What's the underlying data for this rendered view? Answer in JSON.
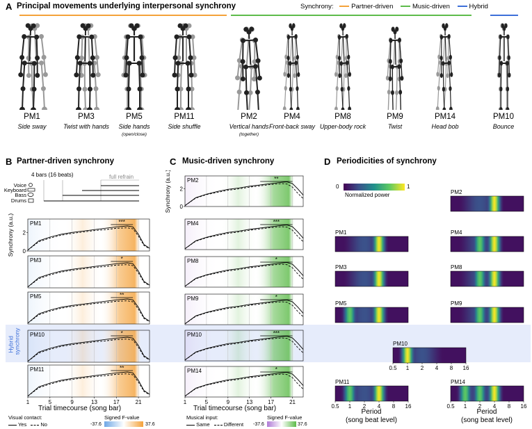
{
  "colors": {
    "partner": "#f4a23a",
    "music": "#5dbb4a",
    "hybrid": "#3d6fd9",
    "negative": "#6ea7e6",
    "musicneg": "#b07ad6",
    "hybridband": "#e6ecfb"
  },
  "panelA": {
    "letter": "A",
    "title": "Principal movements underlying interpersonal synchrony",
    "legend": {
      "label": "Synchrony:",
      "partner": "Partner-driven",
      "music": "Music-driven",
      "hybrid": "Hybrid"
    },
    "movements": [
      {
        "pm": "PM1",
        "desc": "Side sway",
        "sub": ""
      },
      {
        "pm": "PM3",
        "desc": "Twist with hands",
        "sub": ""
      },
      {
        "pm": "PM5",
        "desc": "Side hands",
        "sub": "(open/close)"
      },
      {
        "pm": "PM11",
        "desc": "Side shuffle",
        "sub": ""
      },
      {
        "pm": "PM2",
        "desc": "Vertical hands",
        "sub": "(together)"
      },
      {
        "pm": "PM4",
        "desc": "Front-back sway",
        "sub": ""
      },
      {
        "pm": "PM8",
        "desc": "Upper-body rock",
        "sub": ""
      },
      {
        "pm": "PM9",
        "desc": "Twist",
        "sub": ""
      },
      {
        "pm": "PM14",
        "desc": "Head bob",
        "sub": ""
      },
      {
        "pm": "PM10",
        "desc": "Bounce",
        "sub": ""
      }
    ]
  },
  "panelB": {
    "letter": "B",
    "title": "Partner-driven synchrony",
    "bars_label": "4 bars (16 beats)",
    "refrain_label": "full refrain",
    "instruments": [
      "Voice",
      "Keyboard",
      "Bass",
      "Drums"
    ],
    "ylabel": "Synchrony\n(a.u.)",
    "yticks": [
      "0",
      "2"
    ],
    "hybrid_label": "Hybrid\nsynchrony",
    "xlabel": "Trial timecourse (song bar)",
    "xticks": [
      "1",
      "5",
      "9",
      "13",
      "17",
      "21"
    ],
    "legend_title": "Visual contact:",
    "legend_solid": "Yes",
    "legend_dashed": "No",
    "cbar_title": "Signed F-value",
    "cbar_min": "-37.6",
    "cbar_max": "37.6",
    "rows": [
      {
        "pm": "PM1",
        "sig": "***"
      },
      {
        "pm": "PM3",
        "sig": "*"
      },
      {
        "pm": "PM5",
        "sig": "**"
      },
      {
        "pm": "PM10",
        "sig": "*"
      },
      {
        "pm": "PM11",
        "sig": "**"
      }
    ]
  },
  "panelC": {
    "letter": "C",
    "title": "Music-driven synchrony",
    "ylabel": "Synchrony\n(a.u.)",
    "yticks": [
      "0",
      "2"
    ],
    "xlabel": "Trial timecourse (song bar)",
    "xticks": [
      "1",
      "5",
      "9",
      "13",
      "17",
      "21"
    ],
    "legend_title": "Musical input:",
    "legend_solid": "Same",
    "legend_dashed": "Different",
    "cbar_title": "Signed F-value",
    "cbar_min": "-37.6",
    "cbar_max": "37.6",
    "rows": [
      {
        "pm": "PM2",
        "sig": "**"
      },
      {
        "pm": "PM4",
        "sig": "***"
      },
      {
        "pm": "PM8",
        "sig": "*"
      },
      {
        "pm": "PM9",
        "sig": "*"
      },
      {
        "pm": "PM10",
        "sig": "***"
      },
      {
        "pm": "PM14",
        "sig": "*"
      }
    ]
  },
  "panelD": {
    "letter": "D",
    "title": "Periodicities of synchrony",
    "cbar_min": "0",
    "cbar_max": "1",
    "cbar_label": "Normalized power",
    "xticks": [
      "0.5",
      "1",
      "2",
      "4",
      "8",
      "16"
    ],
    "xlabel": "Period\n(song beat level)",
    "maps": [
      "PM1",
      "PM3",
      "PM5",
      "PM11",
      "PM2",
      "PM4",
      "PM8",
      "PM9",
      "PM14",
      "PM10"
    ]
  },
  "chart_data": [
    {
      "type": "line",
      "title": "Partner-driven synchrony",
      "xlabel": "Trial timecourse (song bar)",
      "ylabel": "Synchrony (a.u.)",
      "xlim": [
        1,
        23
      ],
      "ylim": [
        0,
        3
      ],
      "x": [
        1,
        3,
        5,
        7,
        9,
        11,
        13,
        15,
        17,
        19,
        20,
        21,
        22,
        23
      ],
      "series": [
        {
          "name": "Yes",
          "values": [
            0.1,
            1.1,
            1.5,
            1.8,
            2.0,
            2.15,
            2.3,
            2.45,
            2.6,
            2.7,
            2.6,
            1.8,
            0.7,
            0.3
          ]
        },
        {
          "name": "No",
          "values": [
            0.1,
            1.0,
            1.4,
            1.7,
            1.9,
            2.05,
            2.2,
            2.3,
            2.45,
            2.5,
            2.4,
            1.6,
            0.6,
            0.25
          ]
        }
      ],
      "panels": [
        "PM1",
        "PM3",
        "PM5",
        "PM10",
        "PM11"
      ]
    },
    {
      "type": "line",
      "title": "Music-driven synchrony",
      "xlabel": "Trial timecourse (song bar)",
      "ylabel": "Synchrony (a.u.)",
      "xlim": [
        1,
        23
      ],
      "ylim": [
        0,
        3
      ],
      "x": [
        1,
        3,
        5,
        7,
        9,
        11,
        13,
        15,
        17,
        19,
        20,
        21,
        22,
        23
      ],
      "series": [
        {
          "name": "Same",
          "values": [
            0.1,
            1.0,
            1.4,
            1.7,
            1.95,
            2.1,
            2.3,
            2.45,
            2.6,
            2.75,
            2.8,
            2.6,
            2.0,
            1.3
          ]
        },
        {
          "name": "Different",
          "values": [
            0.1,
            0.95,
            1.35,
            1.6,
            1.85,
            2.0,
            2.2,
            2.35,
            2.5,
            2.6,
            2.55,
            2.2,
            1.5,
            0.9
          ]
        }
      ],
      "panels": [
        "PM2",
        "PM4",
        "PM8",
        "PM9",
        "PM10",
        "PM14"
      ]
    },
    {
      "type": "heatmap",
      "title": "Periodicities of synchrony",
      "xlabel": "Period (song beat level)",
      "colorbar": "Normalized power",
      "xticks": [
        0.5,
        1,
        2,
        4,
        8,
        16
      ],
      "peaks": {
        "PM1": [
          4
        ],
        "PM3": [
          4
        ],
        "PM5": [
          1,
          4
        ],
        "PM11": [
          1,
          4
        ],
        "PM2": [
          4
        ],
        "PM4": [
          2,
          4
        ],
        "PM8": [
          2,
          4
        ],
        "PM9": [
          2,
          4
        ],
        "PM14": [
          1,
          2,
          4
        ],
        "PM10": [
          1
        ]
      }
    }
  ]
}
